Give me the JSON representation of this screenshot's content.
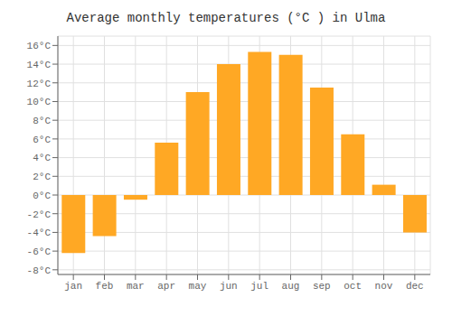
{
  "chart_data": {
    "type": "bar",
    "title": "Average monthly temperatures (°C ) in Ulma",
    "categories": [
      "jan",
      "feb",
      "mar",
      "apr",
      "may",
      "jun",
      "jul",
      "aug",
      "sep",
      "oct",
      "nov",
      "dec"
    ],
    "values": [
      -6.2,
      -4.4,
      -0.5,
      5.6,
      11.0,
      14.0,
      15.3,
      15.0,
      11.5,
      6.5,
      1.1,
      -4.0
    ],
    "color": "#FFA824",
    "ylim": [
      -8.5,
      17
    ],
    "yticks": [
      {
        "value": -8,
        "label": "-8°C"
      },
      {
        "value": -6,
        "label": "-6°C"
      },
      {
        "value": -4,
        "label": "-4°C"
      },
      {
        "value": -2,
        "label": "-2°C"
      },
      {
        "value": 0,
        "label": "0°C"
      },
      {
        "value": 2,
        "label": "2°C"
      },
      {
        "value": 4,
        "label": "4°C"
      },
      {
        "value": 6,
        "label": "6°C"
      },
      {
        "value": 8,
        "label": "8°C"
      },
      {
        "value": 10,
        "label": "10°C"
      },
      {
        "value": 12,
        "label": "12°C"
      },
      {
        "value": 14,
        "label": "14°C"
      },
      {
        "value": 16,
        "label": "16°C"
      }
    ],
    "grid": true
  }
}
